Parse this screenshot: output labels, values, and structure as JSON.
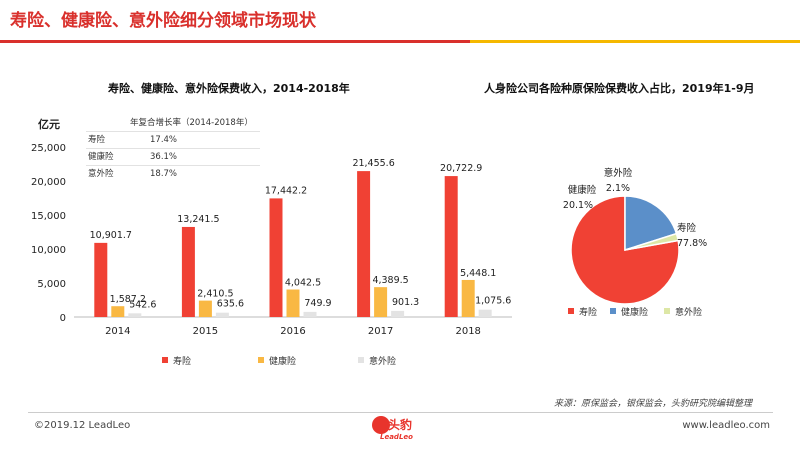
{
  "header": {
    "title": "寿险、健康险、意外险细分领域市场现状"
  },
  "colors": {
    "life": "#f04134",
    "health": "#f9b843",
    "accident": "#e3e3e3",
    "pie_health": "#5b8fc9",
    "pie_accident": "#dde7a6",
    "accent_red": "#d9302c",
    "accent_gold": "#f5b800"
  },
  "bar_panel": {
    "title": "寿险、健康险、意外险保费收入，2014-2018年",
    "unit": "亿元",
    "cagr": {
      "header": "年复合增长率（2014-2018年）",
      "rows": [
        {
          "name": "寿险",
          "value": "17.4%"
        },
        {
          "name": "健康险",
          "value": "36.1%"
        },
        {
          "name": "意外险",
          "value": "18.7%"
        }
      ]
    }
  },
  "pie_panel": {
    "title": "人身险公司各险种原保险保费收入占比，2019年1-9月"
  },
  "chart_data": [
    {
      "type": "bar",
      "title": "寿险、健康险、意外险保费收入，2014-2018年",
      "ylabel": "亿元",
      "ylim": [
        0,
        25000
      ],
      "yticks": [
        "0",
        "5,000",
        "10,000",
        "15,000",
        "20,000",
        "25,000"
      ],
      "categories": [
        "2014",
        "2015",
        "2016",
        "2017",
        "2018"
      ],
      "series": [
        {
          "name": "寿险",
          "values": [
            10901.7,
            13241.5,
            17442.2,
            21455.6,
            20722.9
          ],
          "labels": [
            "10,901.7",
            "13,241.5",
            "17,442.2",
            "21,455.6",
            "20,722.9"
          ]
        },
        {
          "name": "健康险",
          "values": [
            1587.2,
            2410.5,
            4042.5,
            4389.5,
            5448.1
          ],
          "labels": [
            "1,587.2",
            "2,410.5",
            "4,042.5",
            "4,389.5",
            "5,448.1"
          ]
        },
        {
          "name": "意外险",
          "values": [
            542.6,
            635.6,
            749.9,
            901.3,
            1075.6
          ],
          "labels": [
            "542.6",
            "635.6",
            "749.9",
            "901.3",
            "1,075.6"
          ]
        }
      ],
      "legend": "bottom",
      "grid": false
    },
    {
      "type": "pie",
      "title": "人身险公司各险种原保险保费收入占比，2019年1-9月",
      "slices": [
        {
          "name": "寿险",
          "value": 77.8,
          "label": "77.8%"
        },
        {
          "name": "健康险",
          "value": 20.1,
          "label": "20.1%"
        },
        {
          "name": "意外险",
          "value": 2.1,
          "label": "2.1%"
        }
      ],
      "legend": "bottom"
    }
  ],
  "footer": {
    "source": "来源：原保监会，银保监会，头豹研究院编辑整理",
    "copyright": "©2019.12 LeadLeo",
    "website": "www.leadleo.com",
    "brand_cn": "头豹",
    "brand_en": "LeadLeo"
  }
}
